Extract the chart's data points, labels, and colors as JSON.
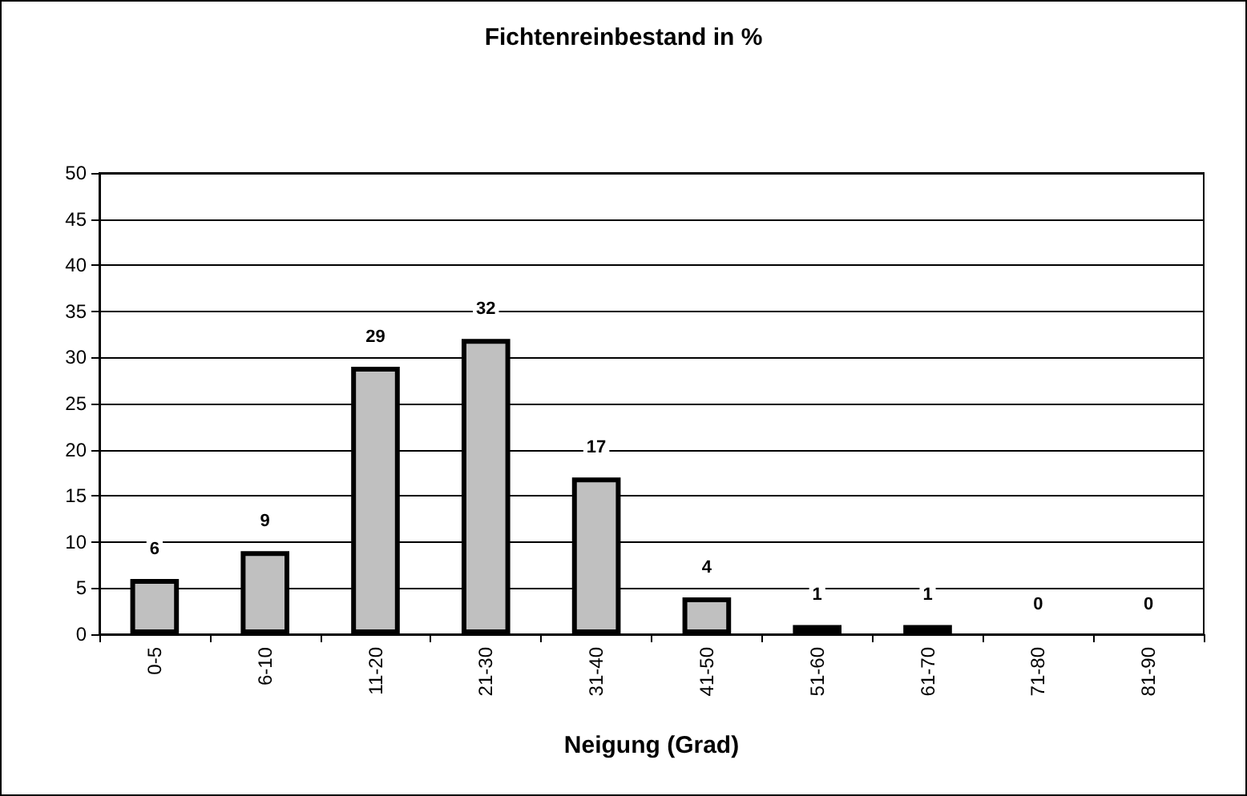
{
  "chart_data": {
    "type": "bar",
    "title": "Fichtenreinbestand in %",
    "xlabel": "Neigung (Grad)",
    "categories": [
      "0-5",
      "6-10",
      "11-20",
      "21-30",
      "31-40",
      "41-50",
      "51-60",
      "61-70",
      "71-80",
      "81-90"
    ],
    "values": [
      6,
      9,
      29,
      32,
      17,
      4,
      1,
      1,
      0,
      0
    ],
    "color": "#c0c0c0",
    "ylim": [
      0,
      50
    ],
    "yticks": [
      0,
      5,
      10,
      15,
      20,
      25,
      30,
      35,
      40,
      45,
      50
    ],
    "grid": "y",
    "data_labels": true
  }
}
